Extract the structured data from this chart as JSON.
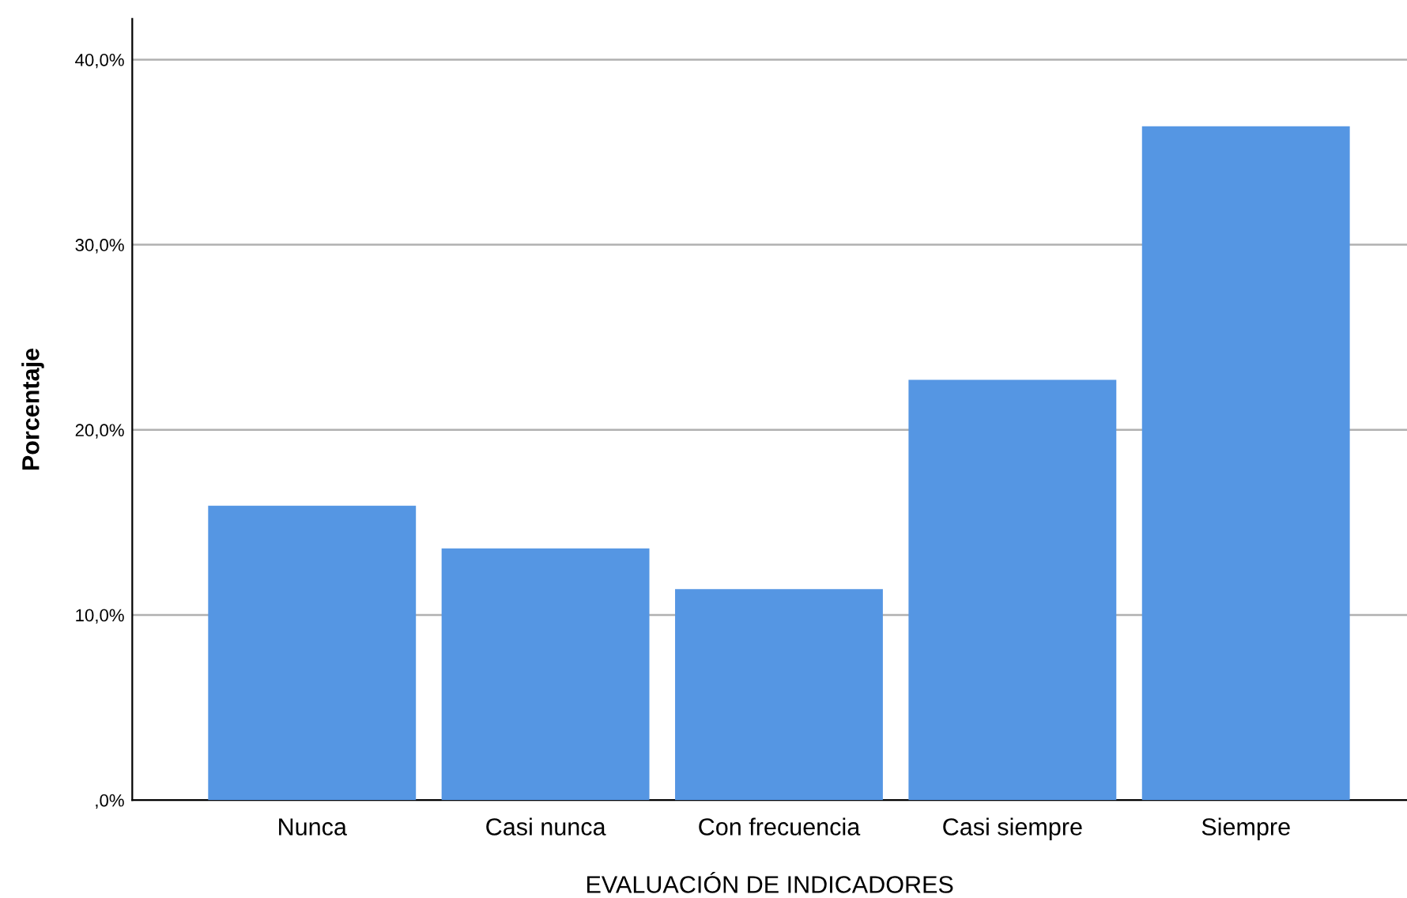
{
  "chart_data": {
    "type": "bar",
    "xlabel": "EVALUACIÓN DE INDICADORES",
    "ylabel": "Porcentaje",
    "categories": [
      "Nunca",
      "Casi nunca",
      "Con frecuencia",
      "Casi siempre",
      "Siempre"
    ],
    "values": [
      15.9,
      13.6,
      11.4,
      22.7,
      36.4
    ],
    "color": "#5596e3",
    "ylim": [
      0,
      42.2
    ],
    "yticks": [
      {
        "value": 0,
        "label": ",0%"
      },
      {
        "value": 10,
        "label": "10,0%"
      },
      {
        "value": 20,
        "label": "20,0%"
      },
      {
        "value": 30,
        "label": "30,0%"
      },
      {
        "value": 40,
        "label": "40,0%"
      }
    ],
    "grid": "y"
  }
}
